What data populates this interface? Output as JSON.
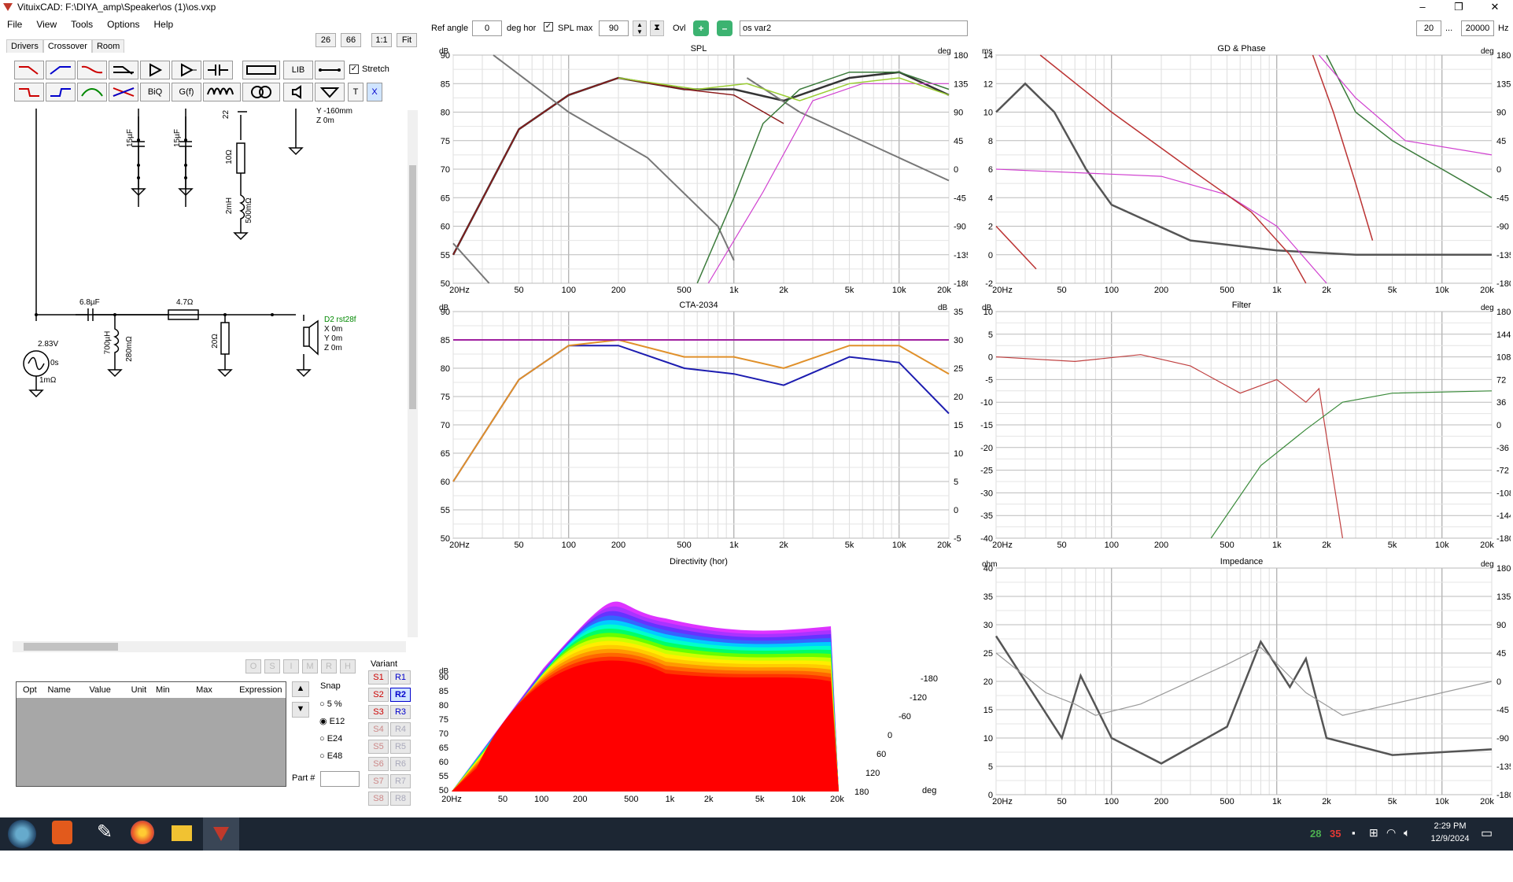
{
  "window": {
    "title": "VituixCAD: F:\\DIYA_amp\\Speaker\\os (1)\\os.vxp",
    "minimize": "–",
    "maximize": "❐",
    "close": "✕"
  },
  "menu": [
    "File",
    "View",
    "Tools",
    "Options",
    "Help"
  ],
  "tabs": [
    "Drivers",
    "Crossover",
    "Room"
  ],
  "zoom_buttons": [
    "26",
    "66",
    "1:1",
    "Fit"
  ],
  "toolbar": {
    "lib": "LIB",
    "biq": "BiQ",
    "gf": "G(f)",
    "t": "T",
    "x": "X",
    "stretch": "Stretch"
  },
  "controls": {
    "ref_angle_label": "Ref angle",
    "ref_angle": "0",
    "deg_hor": "deg hor",
    "spl_max_label": "SPL max",
    "spl_max": "90",
    "ovl": "Ovl",
    "overlay_name": "os var2",
    "f_min": "20",
    "f_sep": "...",
    "f_max": "20000",
    "hz": "Hz"
  },
  "schematic": {
    "c1": "15µF",
    "c2": "15µF",
    "r_22": "22",
    "r_10": "10Ω",
    "l_2": "2mH",
    "r_500": "500mΩ",
    "y160": "Y -160mm",
    "z0": "Z 0m",
    "c_68": "6.8µF",
    "r_47": "4.7Ω",
    "l_700": "700µH",
    "r_280": "280mΩ",
    "r_20": "20Ω",
    "src_v": "2.83V",
    "src_t": "0s",
    "src_r": "1mΩ",
    "d2": "D2 rst28f",
    "d2x": "X 0m",
    "d2y": "Y 0m",
    "d2z": "Z 0m"
  },
  "opt_buttons": [
    "O",
    "S",
    "I",
    "M",
    "R",
    "H"
  ],
  "param_table": {
    "headers": [
      "Opt",
      "Name",
      "Value",
      "Unit",
      "Min",
      "Max",
      "Expression"
    ]
  },
  "snap": {
    "title": "Snap",
    "options": [
      "5 %",
      "E12",
      "E24",
      "E48"
    ],
    "selected": "E12",
    "part": "Part #"
  },
  "variant": {
    "title": "Variant",
    "s": [
      "S1",
      "S2",
      "S3",
      "S4",
      "S5",
      "S6",
      "S7",
      "S8"
    ],
    "r": [
      "R1",
      "R2",
      "R3",
      "R4",
      "R5",
      "R6",
      "R7",
      "R8"
    ]
  },
  "charts": {
    "spl": {
      "title": "SPL",
      "yl": "dB",
      "yr": "deg",
      "left": [
        "90",
        "85",
        "80",
        "75",
        "70",
        "65",
        "60",
        "55",
        "50"
      ],
      "right": [
        "180",
        "135",
        "90",
        "45",
        "0",
        "-45",
        "-90",
        "-135",
        "-180"
      ]
    },
    "gd": {
      "title": "GD & Phase",
      "yl": "ms",
      "yr": "deg",
      "left": [
        "14",
        "12",
        "10",
        "8",
        "6",
        "4",
        "2",
        "0",
        "-2"
      ],
      "right": [
        "180",
        "135",
        "90",
        "45",
        "0",
        "-45",
        "-90",
        "-135",
        "-180"
      ]
    },
    "cta": {
      "title": "CTA-2034",
      "yl": "dB",
      "yr": "dB",
      "left": [
        "90",
        "85",
        "80",
        "75",
        "70",
        "65",
        "60",
        "55",
        "50"
      ],
      "right": [
        "35",
        "30",
        "25",
        "20",
        "15",
        "10",
        "5",
        "0",
        "-5"
      ]
    },
    "filter": {
      "title": "Filter",
      "yl": "dB",
      "yr": "deg",
      "left": [
        "10",
        "5",
        "0",
        "-5",
        "-10",
        "-15",
        "-20",
        "-25",
        "-30",
        "-35",
        "-40"
      ],
      "right": [
        "180",
        "144",
        "108",
        "72",
        "36",
        "0",
        "-36",
        "-72",
        "-108",
        "-144",
        "-180"
      ]
    },
    "dir": {
      "title": "Directivity (hor)",
      "yl": "dB",
      "left": [
        "90",
        "85",
        "80",
        "75",
        "70",
        "65",
        "60",
        "55",
        "50"
      ],
      "angles": [
        "-180",
        "-120",
        "-60",
        "0",
        "60",
        "120",
        "180"
      ],
      "deg": "deg"
    },
    "imp": {
      "title": "Impedance",
      "yl": "ohm",
      "yr": "deg",
      "left": [
        "40",
        "35",
        "30",
        "25",
        "20",
        "15",
        "10",
        "5",
        "0"
      ],
      "right": [
        "180",
        "135",
        "90",
        "45",
        "0",
        "-45",
        "-90",
        "-135",
        "-180"
      ]
    },
    "freq": [
      "20Hz",
      "50",
      "100",
      "200",
      "500",
      "1k",
      "2k",
      "5k",
      "10k",
      "20k"
    ]
  },
  "chart_data": [
    {
      "type": "line",
      "title": "SPL",
      "ylim": [
        50,
        90
      ],
      "x": [
        20,
        50,
        100,
        200,
        500,
        1000,
        2000,
        5000,
        10000,
        20000
      ],
      "series": [
        {
          "values": [
            55,
            77,
            83,
            86,
            84,
            84,
            82,
            86,
            87,
            83
          ]
        },
        {
          "values": [
            55,
            77,
            83,
            86,
            84,
            83,
            78,
            null,
            null,
            null
          ]
        }
      ]
    },
    {
      "type": "line",
      "title": "CTA-2034",
      "ylim": [
        50,
        90
      ],
      "x": [
        20,
        50,
        100,
        200,
        500,
        1000,
        2000,
        5000,
        10000,
        20000
      ],
      "series": [
        {
          "values": [
            60,
            78,
            84,
            84,
            80,
            79,
            77,
            82,
            81,
            72
          ]
        },
        {
          "values": [
            60,
            78,
            84,
            85,
            82,
            82,
            80,
            84,
            84,
            79
          ]
        },
        {
          "values": [
            85,
            85,
            85,
            85,
            85,
            85,
            85,
            85,
            85,
            85
          ]
        }
      ]
    },
    {
      "type": "line",
      "title": "Impedance",
      "ylim": [
        0,
        40
      ],
      "x": [
        20,
        50,
        65,
        100,
        200,
        500,
        800,
        1200,
        1500,
        2000,
        5000,
        20000
      ],
      "series": [
        {
          "values": [
            28,
            10,
            21,
            10,
            5.5,
            12,
            27,
            19,
            24,
            10,
            7,
            8
          ]
        }
      ]
    }
  ],
  "taskbar": {
    "time": "2:29 PM",
    "date": "12/9/2024",
    "t1": "28",
    "t2": "35"
  }
}
